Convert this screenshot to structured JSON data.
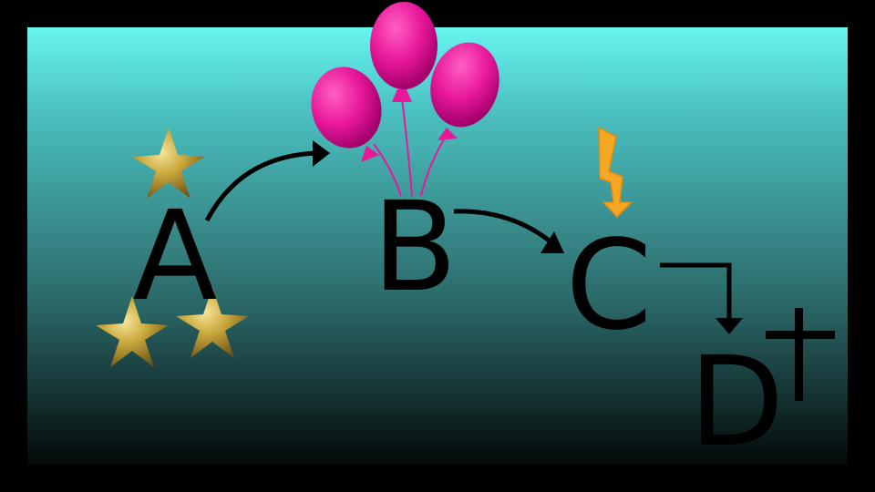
{
  "nodes": [
    {
      "id": "A",
      "label": "A"
    },
    {
      "id": "B",
      "label": "B"
    },
    {
      "id": "C",
      "label": "C"
    },
    {
      "id": "D",
      "label": "D"
    }
  ],
  "edges": [
    {
      "from": "A",
      "to": "B",
      "style": "curved-arrow"
    },
    {
      "from": "B",
      "to": "C",
      "style": "curved-arrow"
    },
    {
      "from": "C",
      "to": "D",
      "style": "elbow-arrow"
    }
  ],
  "decorations": {
    "A": {
      "icon": "gold-star-icon",
      "count": 3
    },
    "B": {
      "icon": "pink-balloon-icon",
      "count": 3
    },
    "C": {
      "icon": "lightning-bolt-icon",
      "count": 1
    },
    "D": {
      "icon": "dagger-cross-icon",
      "count": 1
    }
  },
  "colors": {
    "frame": "#000000",
    "gradient_top": "#66f6f0",
    "gradient_bottom": "#030808",
    "star": "#c9a83c",
    "balloon": "#e8189a",
    "bolt": "#f5a623",
    "ink": "#000000"
  }
}
